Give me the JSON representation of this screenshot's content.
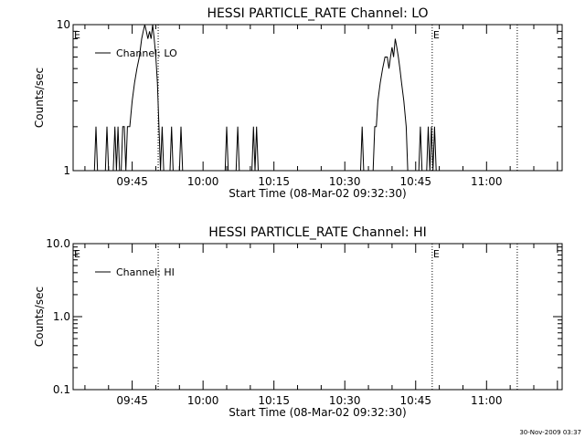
{
  "footer": {
    "timestamp": "30-Nov-2009 03:37"
  },
  "chart_data": [
    {
      "type": "line",
      "title": "HESSI PARTICLE_RATE Channel: LO",
      "xlabel": "Start Time (08-Mar-02 09:32:30)",
      "ylabel": "Counts/sec",
      "yscale": "log",
      "ylim": [
        1,
        10
      ],
      "xlim_minutes_after_09_32_30": [
        0,
        103.5
      ],
      "ytick_labels": [
        "1",
        "10"
      ],
      "xtick_labels": [
        "09:45",
        "10:00",
        "10:15",
        "10:30",
        "10:45",
        "11:00"
      ],
      "markers": [
        {
          "label": "E",
          "time": "09:32:30"
        },
        {
          "label": "E",
          "time": "10:48:30"
        }
      ],
      "vertical_dotted_lines": [
        "09:50:30",
        "10:48:30",
        "11:06:30"
      ],
      "legend": {
        "position": "top-left",
        "entries": [
          "Channel: LO"
        ]
      },
      "series": [
        {
          "name": "Channel: LO",
          "points": [
            [
              "09:37:00",
              1
            ],
            [
              "09:37:20",
              2
            ],
            [
              "09:37:40",
              1
            ],
            [
              "09:39:20",
              1
            ],
            [
              "09:39:40",
              2
            ],
            [
              "09:40:00",
              1
            ],
            [
              "09:41:00",
              1
            ],
            [
              "09:41:20",
              2
            ],
            [
              "09:41:40",
              1
            ],
            [
              "09:42:00",
              2
            ],
            [
              "09:42:20",
              1
            ],
            [
              "09:42:40",
              1
            ],
            [
              "09:43:00",
              2
            ],
            [
              "09:43:20",
              2
            ],
            [
              "09:43:40",
              1
            ],
            [
              "09:44:00",
              2
            ],
            [
              "09:44:30",
              2
            ],
            [
              "09:45:00",
              3
            ],
            [
              "09:45:30",
              4
            ],
            [
              "09:46:00",
              5
            ],
            [
              "09:46:30",
              6
            ],
            [
              "09:47:00",
              8
            ],
            [
              "09:47:20",
              9
            ],
            [
              "09:47:40",
              10
            ],
            [
              "09:48:00",
              9
            ],
            [
              "09:48:20",
              8
            ],
            [
              "09:48:40",
              9
            ],
            [
              "09:49:00",
              8
            ],
            [
              "09:49:20",
              10
            ],
            [
              "09:49:40",
              8
            ],
            [
              "09:50:00",
              6
            ],
            [
              "09:50:20",
              4
            ],
            [
              "09:50:40",
              2
            ],
            [
              "09:51:00",
              1
            ],
            [
              "09:51:20",
              2
            ],
            [
              "09:51:40",
              1
            ],
            [
              "09:53:00",
              1
            ],
            [
              "09:53:20",
              2
            ],
            [
              "09:53:40",
              1
            ],
            [
              "09:55:00",
              1
            ],
            [
              "09:55:20",
              2
            ],
            [
              "09:55:40",
              1
            ],
            [
              "10:04:40",
              1
            ],
            [
              "10:05:00",
              2
            ],
            [
              "10:05:20",
              1
            ],
            [
              "10:07:00",
              1
            ],
            [
              "10:07:20",
              2
            ],
            [
              "10:07:40",
              1
            ],
            [
              "10:10:20",
              1
            ],
            [
              "10:10:40",
              2
            ],
            [
              "10:11:00",
              1
            ],
            [
              "10:11:20",
              2
            ],
            [
              "10:11:40",
              1
            ],
            [
              "10:33:20",
              1
            ],
            [
              "10:33:40",
              2
            ],
            [
              "10:34:00",
              1
            ],
            [
              "10:36:00",
              1
            ],
            [
              "10:36:20",
              2
            ],
            [
              "10:36:40",
              2
            ],
            [
              "10:37:00",
              3
            ],
            [
              "10:37:30",
              4
            ],
            [
              "10:38:00",
              5
            ],
            [
              "10:38:30",
              6
            ],
            [
              "10:39:00",
              6
            ],
            [
              "10:39:20",
              5
            ],
            [
              "10:39:40",
              6
            ],
            [
              "10:40:00",
              7
            ],
            [
              "10:40:20",
              6
            ],
            [
              "10:40:40",
              8
            ],
            [
              "10:41:00",
              7
            ],
            [
              "10:41:20",
              6
            ],
            [
              "10:41:40",
              5
            ],
            [
              "10:42:00",
              4
            ],
            [
              "10:42:30",
              3
            ],
            [
              "10:43:00",
              2
            ],
            [
              "10:43:20",
              1
            ],
            [
              "10:45:40",
              1
            ],
            [
              "10:46:00",
              2
            ],
            [
              "10:46:20",
              1
            ],
            [
              "10:47:20",
              1
            ],
            [
              "10:47:40",
              2
            ],
            [
              "10:48:00",
              1
            ],
            [
              "10:48:20",
              2
            ],
            [
              "10:48:40",
              1
            ],
            [
              "10:49:00",
              2
            ],
            [
              "10:49:20",
              1
            ]
          ]
        }
      ]
    },
    {
      "type": "line",
      "title": "HESSI PARTICLE_RATE Channel: HI",
      "xlabel": "Start Time (08-Mar-02 09:32:30)",
      "ylabel": "Counts/sec",
      "yscale": "log",
      "ylim": [
        0.1,
        10
      ],
      "xlim_minutes_after_09_32_30": [
        0,
        103.5
      ],
      "ytick_labels": [
        "0.1",
        "1.0",
        "10.0"
      ],
      "xtick_labels": [
        "09:45",
        "10:00",
        "10:15",
        "10:30",
        "10:45",
        "11:00"
      ],
      "markers": [
        {
          "label": "E",
          "time": "09:32:30"
        },
        {
          "label": "E",
          "time": "10:48:30"
        }
      ],
      "vertical_dotted_lines": [
        "09:50:30",
        "10:48:30",
        "11:06:30"
      ],
      "legend": {
        "position": "top-left",
        "entries": [
          "Channel: HI"
        ]
      },
      "series": [
        {
          "name": "Channel: HI",
          "points": []
        }
      ]
    }
  ]
}
